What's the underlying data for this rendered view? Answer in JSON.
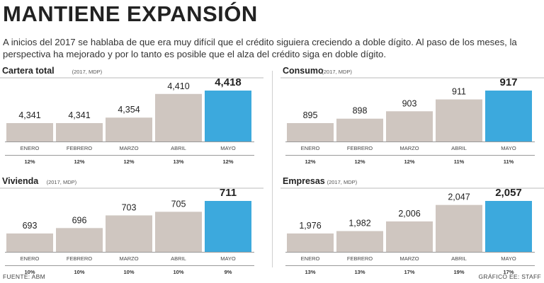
{
  "header": {
    "title": "MANTIENE EXPANSIÓN",
    "subtitle": "A inicios del 2017 se hablaba de que era muy difícil que el crédito siguiera creciendo a doble dígito. Al paso de los meses, la perspectiva ha mejorado y por lo tanto es posible que el alza del crédito siga en doble dígito."
  },
  "colors": {
    "bar": "#cfc6c0",
    "highlight": "#3ca9dd",
    "text": "#222222"
  },
  "chart_data": [
    {
      "type": "bar",
      "title": "Cartera total",
      "subtitle": "(2017, MDP)",
      "categories": [
        "ENERO",
        "FEBRERO",
        "MARZO",
        "ABRIL",
        "MAYO"
      ],
      "values": [
        4341,
        4341,
        4354,
        4410,
        4418
      ],
      "value_labels": [
        "4,341",
        "4,341",
        "4,354",
        "4,410",
        "4,418"
      ],
      "growth": [
        "12%",
        "12%",
        "12%",
        "13%",
        "12%"
      ],
      "highlight_index": 4
    },
    {
      "type": "bar",
      "title": "Consumo",
      "subtitle": "(2017, MDP)",
      "categories": [
        "ENERO",
        "FEBRERO",
        "MARZO",
        "ABRIL",
        "MAYO"
      ],
      "values": [
        895,
        898,
        903,
        911,
        917
      ],
      "value_labels": [
        "895",
        "898",
        "903",
        "911",
        "917"
      ],
      "growth": [
        "12%",
        "12%",
        "12%",
        "11%",
        "11%"
      ],
      "highlight_index": 4
    },
    {
      "type": "bar",
      "title": "Vivienda",
      "subtitle": "(2017, MDP)",
      "categories": [
        "ENERO",
        "FEBRERO",
        "MARZO",
        "ABRIL",
        "MAYO"
      ],
      "values": [
        693,
        696,
        703,
        705,
        711
      ],
      "value_labels": [
        "693",
        "696",
        "703",
        "705",
        "711"
      ],
      "growth": [
        "10%",
        "10%",
        "10%",
        "10%",
        "9%"
      ],
      "highlight_index": 4
    },
    {
      "type": "bar",
      "title": "Empresas",
      "subtitle": "(2017, MDP)",
      "categories": [
        "ENERO",
        "FEBRERO",
        "MARZO",
        "ABRIL",
        "MAYO"
      ],
      "values": [
        1976,
        1982,
        2006,
        2047,
        2057
      ],
      "value_labels": [
        "1,976",
        "1,982",
        "2,006",
        "2,047",
        "2,057"
      ],
      "growth": [
        "13%",
        "13%",
        "17%",
        "19%",
        "17%"
      ],
      "highlight_index": 4
    }
  ],
  "footer": {
    "source": "FUENTE: ABM",
    "credit": "GRÁFICO EE: STAFF"
  }
}
